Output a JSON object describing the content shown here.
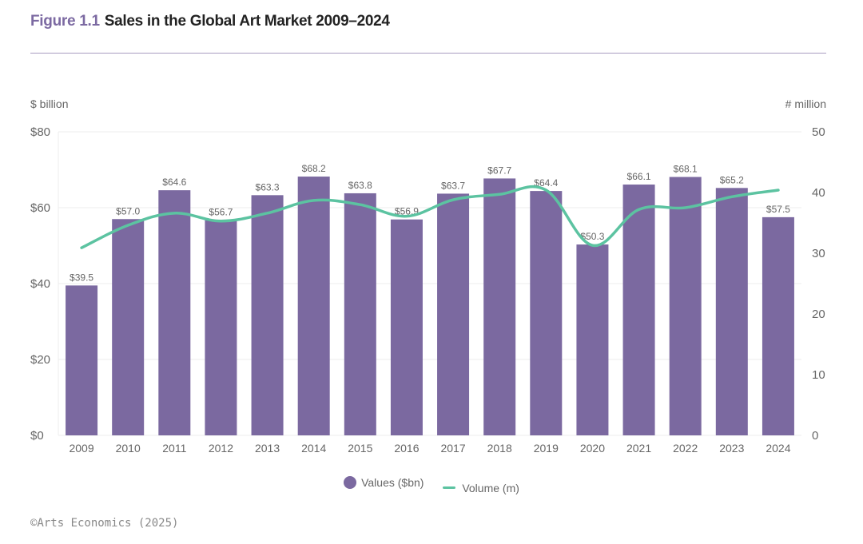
{
  "header": {
    "figure_label": "Figure 1.1",
    "title": "Sales in the Global Art Market 2009–2024"
  },
  "source": "©Arts Economics (2025)",
  "colors": {
    "bar": "#7b69a0",
    "line": "#5cc3a1",
    "figure_label": "#7c6aa2",
    "grid": "#eeeeee"
  },
  "chart_data": {
    "type": "bar",
    "title": "Sales in the Global Art Market 2009–2024",
    "categories": [
      "2009",
      "2010",
      "2011",
      "2012",
      "2013",
      "2014",
      "2015",
      "2016",
      "2017",
      "2018",
      "2019",
      "2020",
      "2021",
      "2022",
      "2023",
      "2024"
    ],
    "series": [
      {
        "name": "Values ($bn)",
        "type": "bar",
        "axis": "left",
        "values": [
          39.5,
          57.0,
          64.6,
          56.7,
          63.3,
          68.2,
          63.8,
          56.9,
          63.7,
          67.7,
          64.4,
          50.3,
          66.1,
          68.1,
          65.2,
          57.5
        ],
        "labels": [
          "$39.5",
          "$57.0",
          "$64.6",
          "$56.7",
          "$63.3",
          "$68.2",
          "$63.8",
          "$56.9",
          "$63.7",
          "$67.7",
          "$64.4",
          "$50.3",
          "$66.1",
          "$68.1",
          "$65.2",
          "$57.5"
        ]
      },
      {
        "name": "Volume (m)",
        "type": "line",
        "axis": "right",
        "values": [
          30.9,
          34.6,
          36.6,
          35.3,
          36.6,
          38.7,
          38.0,
          36.1,
          38.8,
          39.7,
          40.4,
          31.3,
          37.2,
          37.5,
          39.3,
          40.4
        ]
      }
    ],
    "ylabel_left": "$ billion",
    "ylabel_right": "# million",
    "ylim_left": [
      0,
      80
    ],
    "ylim_right": [
      0,
      50
    ],
    "yticks_left": [
      "$0",
      "$20",
      "$40",
      "$60",
      "$80"
    ],
    "yticks_right": [
      "0",
      "10",
      "20",
      "30",
      "40",
      "50"
    ],
    "grid": true,
    "legend": {
      "position": "bottom-center",
      "entries": [
        "Values ($bn)",
        "Volume (m)"
      ]
    }
  }
}
